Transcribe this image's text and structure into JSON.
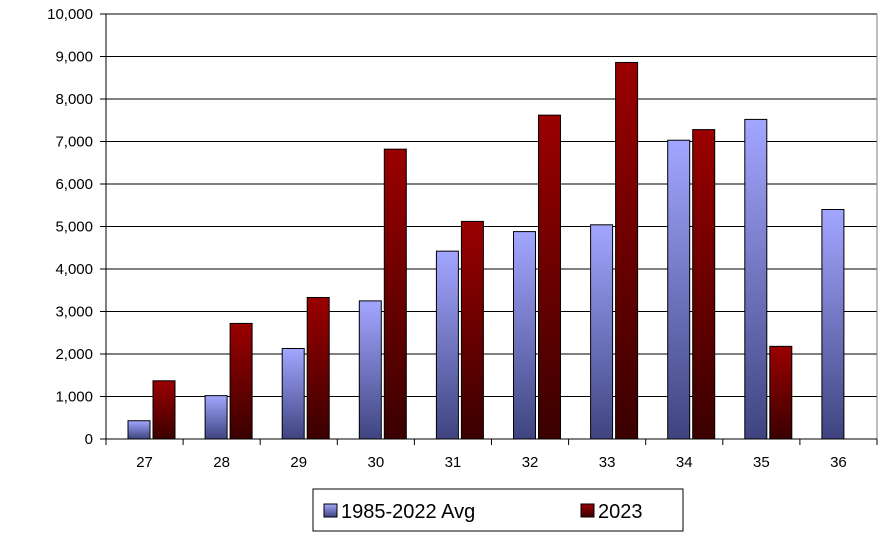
{
  "chart_data": {
    "type": "bar",
    "title": "",
    "xlabel": "",
    "ylabel": "",
    "categories": [
      "27",
      "28",
      "29",
      "30",
      "31",
      "32",
      "33",
      "34",
      "35",
      "36"
    ],
    "series": [
      {
        "name": "1985-2022 Avg",
        "values": [
          430,
          1020,
          2130,
          3250,
          4420,
          4880,
          5040,
          7030,
          7520,
          5400
        ],
        "color_top": "#a3a6ff",
        "color_bottom": "#3f4480"
      },
      {
        "name": "2023",
        "values": [
          1370,
          2720,
          3330,
          6820,
          5120,
          7620,
          8860,
          7280,
          2180,
          null
        ],
        "color_top": "#9b0000",
        "color_bottom": "#3a0000"
      }
    ],
    "ylim": [
      0,
      10000
    ],
    "yticks": [
      0,
      1000,
      2000,
      3000,
      4000,
      5000,
      6000,
      7000,
      8000,
      9000,
      10000
    ],
    "ytick_labels": [
      "0",
      "1,000",
      "2,000",
      "3,000",
      "4,000",
      "5,000",
      "6,000",
      "7,000",
      "8,000",
      "9,000",
      "10,000"
    ],
    "grid": true,
    "legend_position": "bottom"
  }
}
